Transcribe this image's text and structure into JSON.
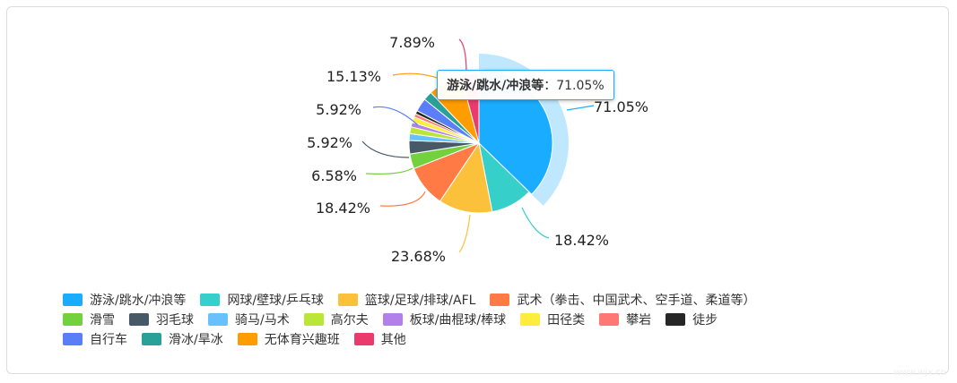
{
  "chart_data": {
    "type": "pie",
    "title": "",
    "slices": [
      {
        "name": "游泳/跳水/冲浪等",
        "value": 71.05,
        "label": "71.05%",
        "color": "#1aadff",
        "highlighted": true
      },
      {
        "name": "网球/壁球/乒乓球",
        "value": 18.42,
        "label": "18.42%",
        "color": "#36cfc9"
      },
      {
        "name": "篮球/足球/排球/AFL",
        "value": 23.68,
        "label": "23.68%",
        "color": "#fbc13b"
      },
      {
        "name": "武术（拳击、中国武术、空手道、柔道等）",
        "value": 18.42,
        "label": "18.42%",
        "color": "#ff7a45"
      },
      {
        "name": "滑雪",
        "value": 6.58,
        "label": "6.58%",
        "color": "#73d13d"
      },
      {
        "name": "羽毛球",
        "value": 5.92,
        "label": "5.92%",
        "color": "#475867"
      },
      {
        "name": "骑马/马术",
        "value": 3.0,
        "label": "",
        "color": "#69c0ff"
      },
      {
        "name": "高尔夫",
        "value": 3.0,
        "label": "",
        "color": "#bae637"
      },
      {
        "name": "板球/曲棍球/棒球",
        "value": 2.0,
        "label": "",
        "color": "#b37feb"
      },
      {
        "name": "田径类",
        "value": 2.5,
        "label": "",
        "color": "#ffec3d"
      },
      {
        "name": "攀岩",
        "value": 1.5,
        "label": "",
        "color": "#ff7875"
      },
      {
        "name": "徒步",
        "value": 1.5,
        "label": "",
        "color": "#262626"
      },
      {
        "name": "自行车",
        "value": 5.92,
        "label": "5.92%",
        "color": "#597ef7"
      },
      {
        "name": "滑冰/旱冰",
        "value": 4.0,
        "label": "",
        "color": "#2aa198"
      },
      {
        "name": "无体育兴趣班",
        "value": 15.13,
        "label": "15.13%",
        "color": "#ff9c00"
      },
      {
        "name": "其他",
        "value": 7.89,
        "label": "7.89%",
        "color": "#eb3b6d"
      }
    ],
    "legend_position": "bottom"
  },
  "tooltip": {
    "name": "游泳/跳水/冲浪等",
    "sep": "：",
    "value": "71.05%"
  },
  "watermark": "www.wjx.cn"
}
